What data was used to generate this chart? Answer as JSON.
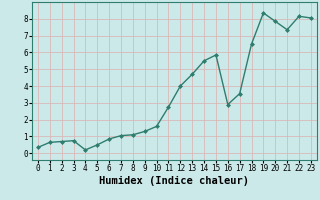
{
  "title": "",
  "xlabel": "Humidex (Indice chaleur)",
  "ylabel": "",
  "x": [
    0,
    1,
    2,
    3,
    4,
    5,
    6,
    7,
    8,
    9,
    10,
    11,
    12,
    13,
    14,
    15,
    16,
    17,
    18,
    19,
    20,
    21,
    22,
    23
  ],
  "y": [
    0.35,
    0.65,
    0.7,
    0.75,
    0.2,
    0.5,
    0.85,
    1.05,
    1.1,
    1.3,
    1.6,
    2.75,
    4.0,
    4.7,
    5.5,
    5.85,
    2.9,
    3.55,
    6.5,
    8.35,
    7.85,
    7.35,
    8.15,
    8.05
  ],
  "line_color": "#2e7d6e",
  "marker": "D",
  "marker_size": 2,
  "bg_color": "#cce9e9",
  "grid_color": "#e8e8e8",
  "ylim": [
    -0.4,
    9.0
  ],
  "xlim": [
    -0.5,
    23.5
  ],
  "yticks": [
    0,
    1,
    2,
    3,
    4,
    5,
    6,
    7,
    8
  ],
  "xticks": [
    0,
    1,
    2,
    3,
    4,
    5,
    6,
    7,
    8,
    9,
    10,
    11,
    12,
    13,
    14,
    15,
    16,
    17,
    18,
    19,
    20,
    21,
    22,
    23
  ],
  "tick_labelsize": 5.5,
  "xlabel_fontsize": 7.5,
  "line_width": 1.0
}
